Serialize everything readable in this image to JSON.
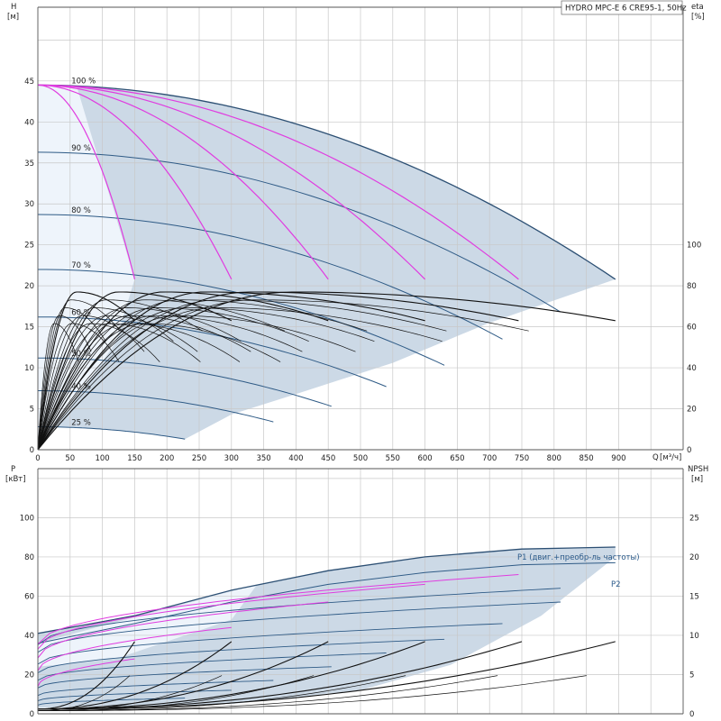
{
  "chart_data": [
    {
      "type": "line",
      "title": "HYDRO MPC-E 6 CRE95-1, 50Hz",
      "ylabel": "H",
      "yunit": "[м]",
      "y2label": "eta",
      "y2unit": "[%]",
      "xlabel": "Q",
      "xunit": "[м³/ч]",
      "xlim": [
        0,
        1000
      ],
      "ylim": [
        0,
        54
      ],
      "y2lim": [
        0,
        216
      ],
      "xticks": [
        0,
        50,
        100,
        150,
        200,
        250,
        300,
        350,
        400,
        450,
        500,
        550,
        600,
        650,
        700,
        750,
        800,
        850,
        900
      ],
      "yticks": [
        0,
        5,
        10,
        15,
        20,
        25,
        30,
        35,
        40,
        45
      ],
      "y2ticks": [
        0,
        20,
        40,
        60,
        80,
        100
      ],
      "grid": true,
      "speed_labels": [
        "100 %",
        "90 %",
        "80 %",
        "70 %",
        "60 %",
        "50 %",
        "40 %",
        "25 %"
      ],
      "speed_curves": [
        {
          "name": "100 %",
          "pct": 100,
          "h0": 44.5,
          "qmax": 895,
          "hend": 20.8
        },
        {
          "name": "90 %",
          "pct": 90,
          "h0": 36.3,
          "qmax": 810,
          "hend": 16.8
        },
        {
          "name": "80 %",
          "pct": 80,
          "h0": 28.7,
          "qmax": 720,
          "hend": 13.5
        },
        {
          "name": "70 %",
          "pct": 70,
          "h0": 22.0,
          "qmax": 630,
          "hend": 10.3
        },
        {
          "name": "60 %",
          "pct": 60,
          "h0": 16.2,
          "qmax": 540,
          "hend": 7.7
        },
        {
          "name": "50 %",
          "pct": 50,
          "h0": 11.2,
          "qmax": 455,
          "hend": 5.3
        },
        {
          "name": "40 %",
          "pct": 40,
          "h0": 7.2,
          "qmax": 365,
          "hend": 3.4
        },
        {
          "name": "25 %",
          "pct": 25,
          "h0": 2.8,
          "qmax": 228,
          "hend": 1.3
        }
      ],
      "fewer_pumps_curves": [
        {
          "pumps": 1,
          "qmax": 150,
          "hend": 20.8
        },
        {
          "pumps": 2,
          "qmax": 300,
          "hend": 20.8
        },
        {
          "pumps": 3,
          "qmax": 450,
          "hend": 20.8
        },
        {
          "pumps": 4,
          "qmax": 600,
          "hend": 20.8
        },
        {
          "pumps": 5,
          "qmax": 745,
          "hend": 20.8
        }
      ],
      "eta_curves": [
        {
          "pumps": 1,
          "q_peak": 60,
          "eta_peak": 77,
          "q_end": 150,
          "eta_end": 63
        },
        {
          "pumps": 2,
          "q_peak": 125,
          "eta_peak": 77,
          "q_end": 300,
          "eta_end": 63
        },
        {
          "pumps": 3,
          "q_peak": 195,
          "eta_peak": 77,
          "q_end": 450,
          "eta_end": 63
        },
        {
          "pumps": 4,
          "q_peak": 260,
          "eta_peak": 77,
          "q_end": 600,
          "eta_end": 63
        },
        {
          "pumps": 5,
          "q_peak": 330,
          "eta_peak": 77,
          "q_end": 745,
          "eta_end": 63
        },
        {
          "pumps": 6,
          "q_peak": 395,
          "eta_peak": 77,
          "q_end": 895,
          "eta_end": 63
        }
      ]
    },
    {
      "type": "line",
      "ylabel": "P",
      "yunit": "[кВт]",
      "y2label": "NPSH",
      "y2unit": "[м]",
      "xlim": [
        0,
        1000
      ],
      "ylim": [
        0,
        125
      ],
      "y2lim": [
        0,
        31.25
      ],
      "yticks": [
        0,
        20,
        40,
        60,
        80,
        100
      ],
      "y2ticks": [
        0,
        5,
        10,
        15,
        20,
        25
      ],
      "grid": true,
      "series": [
        {
          "name": "P1 (двиг.+преобр-ль частоты)",
          "x": [
            0,
            150,
            300,
            450,
            600,
            750,
            895
          ],
          "values": [
            41,
            50,
            63,
            73,
            80,
            84,
            85
          ]
        },
        {
          "name": "P2",
          "x": [
            0,
            150,
            300,
            450,
            600,
            750,
            895
          ],
          "values": [
            36,
            46,
            57,
            66,
            72,
            76,
            77
          ]
        }
      ],
      "npsh_curves": [
        {
          "pumps": 1,
          "qmax": 150,
          "npsh_end": 9.2
        },
        {
          "pumps": 2,
          "qmax": 300,
          "npsh_end": 9.2
        },
        {
          "pumps": 3,
          "qmax": 450,
          "npsh_end": 9.2
        },
        {
          "pumps": 4,
          "qmax": 600,
          "npsh_end": 9.2
        },
        {
          "pumps": 5,
          "qmax": 750,
          "npsh_end": 9.2
        },
        {
          "pumps": 6,
          "qmax": 895,
          "npsh_end": 9.2
        }
      ]
    }
  ]
}
